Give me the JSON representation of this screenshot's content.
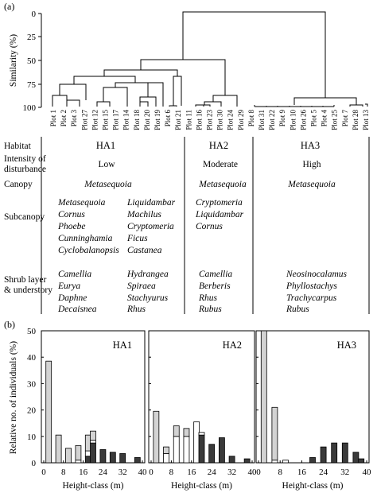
{
  "panel_a_label": "(a)",
  "panel_b_label": "(b)",
  "dendro": {
    "ylabel": "Similarity (%)",
    "yticks": [
      "0",
      "25",
      "50",
      "75",
      "100"
    ],
    "plots": [
      "Plot 1",
      "Plot 2",
      "Plot 3",
      "Plot 27",
      "Plot 12",
      "Plot 15",
      "Plot 17",
      "Plot 14",
      "Plot 18",
      "Plot 20",
      "Plot 19",
      "Plot 6",
      "Plot 21",
      "Plot 11",
      "Plot 16",
      "Plot 23",
      "Plot 30",
      "Plot 24",
      "Plot 29",
      "Plot 8",
      "Plot 31",
      "Plot 22",
      "Plot 9",
      "Plot 10",
      "Plot 26",
      "Plot 5",
      "Plot 4",
      "Plot 25",
      "Plot 7",
      "Plot 28",
      "Plot 13"
    ]
  },
  "table": {
    "rows": {
      "habitat": "Habitat",
      "disturbance_1": "Intensity of",
      "disturbance_2": "disturbance",
      "canopy": "Canopy",
      "subcanopy": "Subcanopy",
      "shrub_1": "Shrub layer",
      "shrub_2": "& understory"
    },
    "ha1": {
      "habitat": "HA1",
      "disturbance": "Low",
      "canopy": "Metasequoia",
      "subcanopy_left": [
        "Metasequoia",
        "Cornus",
        "Phoebe",
        "Cunninghamia",
        "Cyclobalanopsis"
      ],
      "subcanopy_right": [
        "Liquidambar",
        "Machilus",
        "Cryptomeria",
        "Ficus",
        "Castanea"
      ],
      "shrub_left": [
        "Camellia",
        "Eurya",
        "Daphne",
        "Decaisnea"
      ],
      "shrub_right": [
        "Hydrangea",
        "Spiraea",
        "Stachyurus",
        "Rhus"
      ]
    },
    "ha2": {
      "habitat": "HA2",
      "disturbance": "Moderate",
      "canopy": "Metasequoia",
      "subcanopy": [
        "Cryptomeria",
        "Liquidambar",
        "Cornus"
      ],
      "shrub": [
        "Camellia",
        "Berberis",
        "Rhus",
        "Rubus"
      ]
    },
    "ha3": {
      "habitat": "HA3",
      "disturbance": "High",
      "canopy": "Metasequoia",
      "shrub": [
        "Neosinocalamus",
        "Phyllostachys",
        "Trachycarpus",
        "Rubus"
      ]
    }
  },
  "chart_data": {
    "type": "bar",
    "ylabel": "Relative no. of individuals (%)",
    "xlabel": "Height-class (m)",
    "ylim": [
      0,
      50
    ],
    "yticks": [
      0,
      10,
      20,
      30,
      40,
      50
    ],
    "xticks": [
      0,
      8,
      16,
      24,
      32,
      40
    ],
    "fill_legend": {
      "lightgray": "#d3d3d3",
      "white": "#ffffff",
      "dark": "#3a3a3a"
    },
    "panels": [
      {
        "name": "HA1",
        "bars": [
          {
            "x": 2,
            "segments": [
              [
                "lightgray",
                38.5
              ]
            ]
          },
          {
            "x": 6,
            "segments": [
              [
                "lightgray",
                10.5
              ]
            ]
          },
          {
            "x": 10,
            "segments": [
              [
                "lightgray",
                5.5
              ]
            ]
          },
          {
            "x": 14,
            "segments": [
              [
                "white",
                1.0
              ],
              [
                "lightgray",
                5.5
              ]
            ]
          },
          {
            "x": 18,
            "segments": [
              [
                "dark",
                2.5
              ],
              [
                "white",
                2.0
              ],
              [
                "lightgray",
                6.0
              ]
            ]
          },
          {
            "x": 20,
            "segments": [
              [
                "dark",
                7.5
              ],
              [
                "white",
                1.0
              ],
              [
                "lightgray",
                3.5
              ]
            ]
          },
          {
            "x": 24,
            "segments": [
              [
                "dark",
                5.0
              ]
            ]
          },
          {
            "x": 28,
            "segments": [
              [
                "dark",
                4.0
              ]
            ]
          },
          {
            "x": 32,
            "segments": [
              [
                "dark",
                3.5
              ]
            ]
          },
          {
            "x": 38,
            "segments": [
              [
                "dark",
                2.0
              ]
            ]
          }
        ]
      },
      {
        "name": "HA2",
        "bars": [
          {
            "x": 2,
            "segments": [
              [
                "lightgray",
                19.5
              ]
            ]
          },
          {
            "x": 6,
            "segments": [
              [
                "white",
                3.5
              ],
              [
                "lightgray",
                2.5
              ]
            ]
          },
          {
            "x": 10,
            "segments": [
              [
                "white",
                10.0
              ],
              [
                "lightgray",
                4.0
              ]
            ]
          },
          {
            "x": 14,
            "segments": [
              [
                "white",
                10.0
              ],
              [
                "lightgray",
                3.0
              ]
            ]
          },
          {
            "x": 18,
            "segments": [
              [
                "white",
                15.5
              ]
            ]
          },
          {
            "x": 20,
            "segments": [
              [
                "dark",
                10.5
              ],
              [
                "white",
                1.0
              ]
            ]
          },
          {
            "x": 24,
            "segments": [
              [
                "dark",
                7.0
              ]
            ]
          },
          {
            "x": 28,
            "segments": [
              [
                "dark",
                9.5
              ]
            ]
          },
          {
            "x": 32,
            "segments": [
              [
                "dark",
                2.5
              ]
            ]
          },
          {
            "x": 38,
            "segments": [
              [
                "dark",
                1.5
              ]
            ]
          }
        ]
      },
      {
        "name": "HA3",
        "bars": [
          {
            "x": 2,
            "segments": [
              [
                "lightgray",
                50.0
              ]
            ]
          },
          {
            "x": 6,
            "segments": [
              [
                "white",
                1.0
              ],
              [
                "lightgray",
                20.0
              ]
            ]
          },
          {
            "x": 10,
            "segments": [
              [
                "white",
                1.0
              ]
            ]
          },
          {
            "x": 20,
            "segments": [
              [
                "dark",
                2.0
              ]
            ]
          },
          {
            "x": 24,
            "segments": [
              [
                "dark",
                6.0
              ]
            ]
          },
          {
            "x": 28,
            "segments": [
              [
                "dark",
                7.5
              ]
            ]
          },
          {
            "x": 32,
            "segments": [
              [
                "dark",
                7.5
              ]
            ]
          },
          {
            "x": 36,
            "segments": [
              [
                "dark",
                4.0
              ]
            ]
          },
          {
            "x": 38,
            "segments": [
              [
                "dark",
                1.5
              ]
            ]
          }
        ]
      }
    ]
  }
}
